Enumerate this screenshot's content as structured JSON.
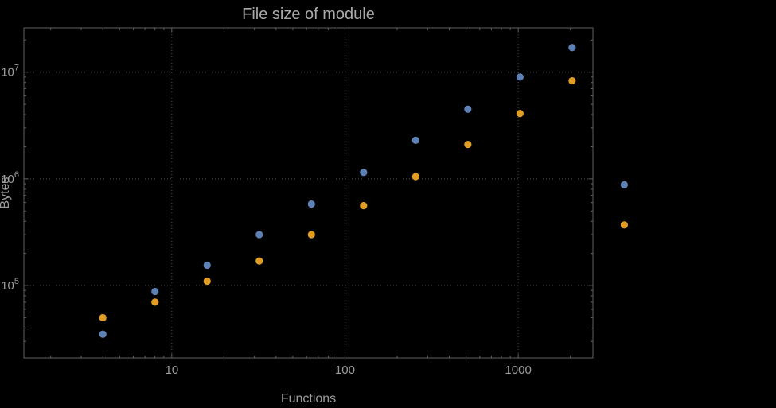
{
  "colors": {
    "background": "#000000",
    "frame": "#606060",
    "grid": "#4f4f4f",
    "tick": "#606060",
    "text": "#9c9c9c",
    "title_text": "#a9a9a9",
    "series_blue": "#5e81b5",
    "series_orange": "#e19c24"
  },
  "chart_data": {
    "type": "scatter",
    "title": "File size of module",
    "xlabel": "Functions",
    "ylabel": "Bytes",
    "x_scale": "log",
    "y_scale": "log",
    "xlim": [
      1.4,
      2700
    ],
    "ylim": [
      21000,
      26000000
    ],
    "grid": "dotted-at-major-ticks",
    "legend": "none",
    "frame": true,
    "x": [
      4,
      8,
      16,
      32,
      64,
      128,
      256,
      512,
      1024,
      2048,
      4096
    ],
    "series": [
      {
        "name": "series-blue",
        "color": "#5e81b5",
        "values": [
          35000,
          88000,
          155000,
          300000,
          580000,
          1150000,
          2300000,
          4500000,
          9000000,
          17000000,
          880000
        ]
      },
      {
        "name": "series-orange",
        "color": "#e19c24",
        "values": [
          50000,
          70000,
          110000,
          170000,
          300000,
          560000,
          1050000,
          2100000,
          4100000,
          8300000,
          370000
        ]
      }
    ],
    "x_ticks": [
      {
        "value": 10,
        "label": "10"
      },
      {
        "value": 100,
        "label": "100"
      },
      {
        "value": 1000,
        "label": "1000"
      }
    ],
    "y_ticks": [
      {
        "value": 100000,
        "label": "10^5"
      },
      {
        "value": 1000000,
        "label": "10^6"
      },
      {
        "value": 10000000,
        "label": "10^7"
      }
    ]
  }
}
